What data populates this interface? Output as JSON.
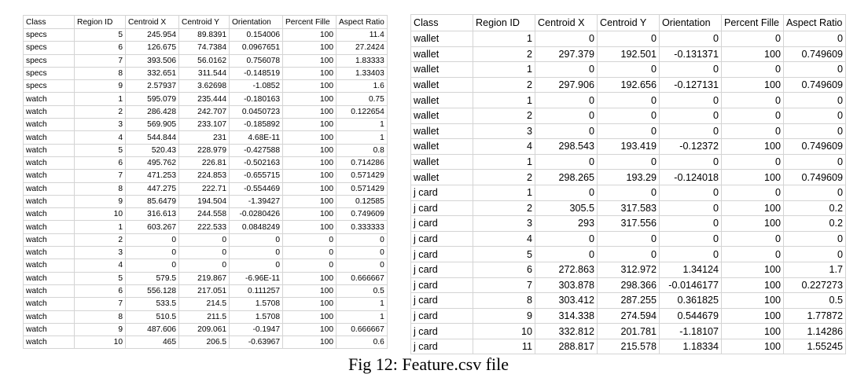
{
  "left_table": {
    "headers": [
      "Class",
      "Region ID",
      "Centroid X",
      "Centroid Y",
      "Orientation",
      "Percent Fille",
      "Aspect Ratio"
    ],
    "rows": [
      [
        "specs",
        "5",
        "245.954",
        "89.8391",
        "0.154006",
        "100",
        "11.4"
      ],
      [
        "specs",
        "6",
        "126.675",
        "74.7384",
        "0.0967651",
        "100",
        "27.2424"
      ],
      [
        "specs",
        "7",
        "393.506",
        "56.0162",
        "0.756078",
        "100",
        "1.83333"
      ],
      [
        "specs",
        "8",
        "332.651",
        "311.544",
        "-0.148519",
        "100",
        "1.33403"
      ],
      [
        "specs",
        "9",
        "2.57937",
        "3.62698",
        "-1.0852",
        "100",
        "1.6"
      ],
      [
        "watch",
        "1",
        "595.079",
        "235.444",
        "-0.180163",
        "100",
        "0.75"
      ],
      [
        "watch",
        "2",
        "286.428",
        "242.707",
        "0.0450723",
        "100",
        "0.122654"
      ],
      [
        "watch",
        "3",
        "569.905",
        "233.107",
        "-0.185892",
        "100",
        "1"
      ],
      [
        "watch",
        "4",
        "544.844",
        "231",
        "4.68E-11",
        "100",
        "1"
      ],
      [
        "watch",
        "5",
        "520.43",
        "228.979",
        "-0.427588",
        "100",
        "0.8"
      ],
      [
        "watch",
        "6",
        "495.762",
        "226.81",
        "-0.502163",
        "100",
        "0.714286"
      ],
      [
        "watch",
        "7",
        "471.253",
        "224.853",
        "-0.655715",
        "100",
        "0.571429"
      ],
      [
        "watch",
        "8",
        "447.275",
        "222.71",
        "-0.554469",
        "100",
        "0.571429"
      ],
      [
        "watch",
        "9",
        "85.6479",
        "194.504",
        "-1.39427",
        "100",
        "0.12585"
      ],
      [
        "watch",
        "10",
        "316.613",
        "244.558",
        "-0.0280426",
        "100",
        "0.749609"
      ],
      [
        "watch",
        "1",
        "603.267",
        "222.533",
        "0.0848249",
        "100",
        "0.333333"
      ],
      [
        "watch",
        "2",
        "0",
        "0",
        "0",
        "0",
        "0"
      ],
      [
        "watch",
        "3",
        "0",
        "0",
        "0",
        "0",
        "0"
      ],
      [
        "watch",
        "4",
        "0",
        "0",
        "0",
        "0",
        "0"
      ],
      [
        "watch",
        "5",
        "579.5",
        "219.867",
        "-6.96E-11",
        "100",
        "0.666667"
      ],
      [
        "watch",
        "6",
        "556.128",
        "217.051",
        "0.111257",
        "100",
        "0.5"
      ],
      [
        "watch",
        "7",
        "533.5",
        "214.5",
        "1.5708",
        "100",
        "1"
      ],
      [
        "watch",
        "8",
        "510.5",
        "211.5",
        "1.5708",
        "100",
        "1"
      ],
      [
        "watch",
        "9",
        "487.606",
        "209.061",
        "-0.1947",
        "100",
        "0.666667"
      ],
      [
        "watch",
        "10",
        "465",
        "206.5",
        "-0.63967",
        "100",
        "0.6"
      ]
    ]
  },
  "right_table": {
    "headers": [
      "Class",
      "Region ID",
      "Centroid X",
      "Centroid Y",
      "Orientation",
      "Percent Fille",
      "Aspect Ratio"
    ],
    "rows": [
      [
        "wallet",
        "1",
        "0",
        "0",
        "0",
        "0",
        "0"
      ],
      [
        "wallet",
        "2",
        "297.379",
        "192.501",
        "-0.131371",
        "100",
        "0.749609"
      ],
      [
        "wallet",
        "1",
        "0",
        "0",
        "0",
        "0",
        "0"
      ],
      [
        "wallet",
        "2",
        "297.906",
        "192.656",
        "-0.127131",
        "100",
        "0.749609"
      ],
      [
        "wallet",
        "1",
        "0",
        "0",
        "0",
        "0",
        "0"
      ],
      [
        "wallet",
        "2",
        "0",
        "0",
        "0",
        "0",
        "0"
      ],
      [
        "wallet",
        "3",
        "0",
        "0",
        "0",
        "0",
        "0"
      ],
      [
        "wallet",
        "4",
        "298.543",
        "193.419",
        "-0.12372",
        "100",
        "0.749609"
      ],
      [
        "wallet",
        "1",
        "0",
        "0",
        "0",
        "0",
        "0"
      ],
      [
        "wallet",
        "2",
        "298.265",
        "193.29",
        "-0.124018",
        "100",
        "0.749609"
      ],
      [
        "j card",
        "1",
        "0",
        "0",
        "0",
        "0",
        "0"
      ],
      [
        "j card",
        "2",
        "305.5",
        "317.583",
        "0",
        "100",
        "0.2"
      ],
      [
        "j card",
        "3",
        "293",
        "317.556",
        "0",
        "100",
        "0.2"
      ],
      [
        "j card",
        "4",
        "0",
        "0",
        "0",
        "0",
        "0"
      ],
      [
        "j card",
        "5",
        "0",
        "0",
        "0",
        "0",
        "0"
      ],
      [
        "j card",
        "6",
        "272.863",
        "312.972",
        "1.34124",
        "100",
        "1.7"
      ],
      [
        "j card",
        "7",
        "303.878",
        "298.366",
        "-0.0146177",
        "100",
        "0.227273"
      ],
      [
        "j card",
        "8",
        "303.412",
        "287.255",
        "0.361825",
        "100",
        "0.5"
      ],
      [
        "j card",
        "9",
        "314.338",
        "274.594",
        "0.544679",
        "100",
        "1.77872"
      ],
      [
        "j card",
        "10",
        "332.812",
        "201.781",
        "-1.18107",
        "100",
        "1.14286"
      ],
      [
        "j card",
        "11",
        "288.817",
        "215.578",
        "1.18334",
        "100",
        "1.55245"
      ]
    ]
  },
  "caption": "Fig 12: Feature.csv file"
}
